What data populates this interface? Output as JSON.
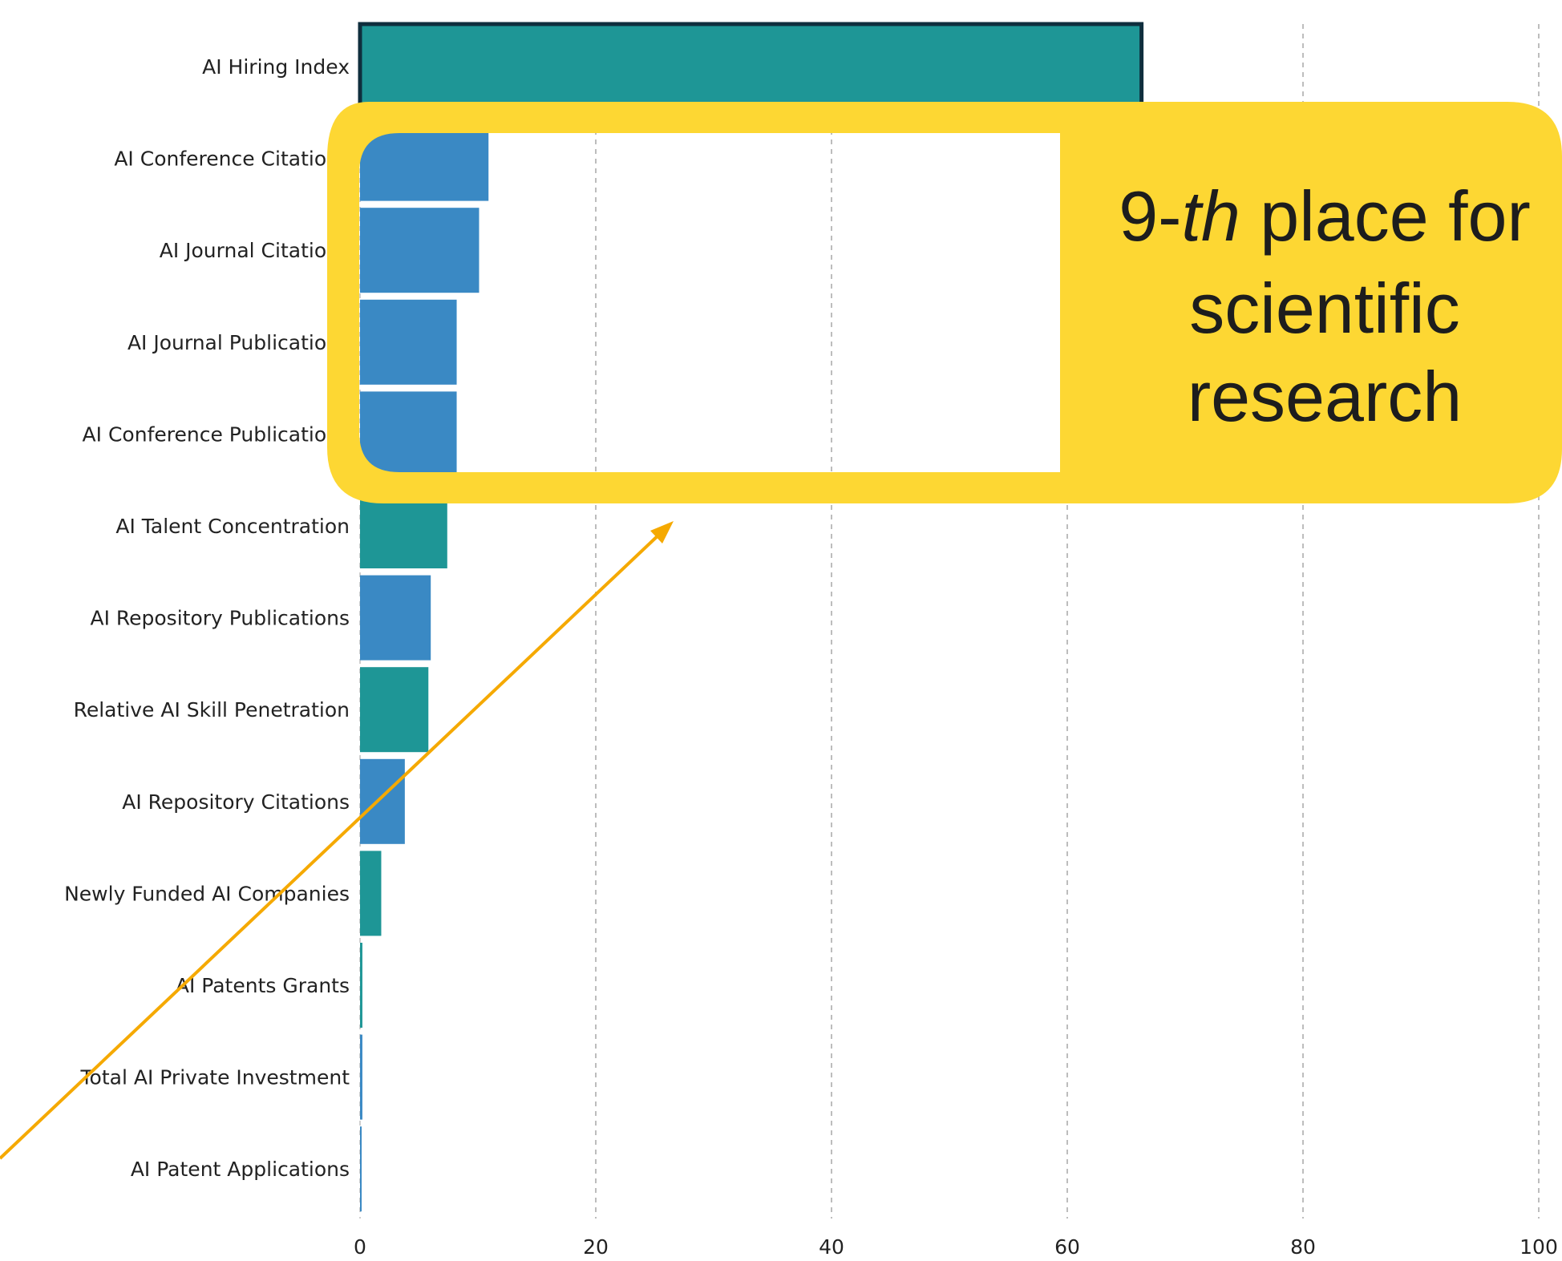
{
  "chart_data": {
    "type": "bar",
    "orientation": "horizontal",
    "categories": [
      "AI Hiring Index",
      "AI Conference Citations",
      "AI Journal Citations",
      "AI Journal Publications",
      "AI Conference Publications",
      "AI Talent Concentration",
      "AI Repository Publications",
      "Relative AI Skill Penetration",
      "AI Repository Citations",
      "Newly Funded AI Companies",
      "AI Patents Grants",
      "Total AI Private Investment",
      "AI Patent Applications"
    ],
    "values": [
      66.3,
      10.9,
      10.1,
      8.2,
      8.2,
      7.4,
      6.0,
      5.8,
      3.8,
      1.8,
      0.2,
      0.2,
      0.1
    ],
    "groups": [
      "teal",
      "blue",
      "blue",
      "blue",
      "blue",
      "teal",
      "blue",
      "teal",
      "blue",
      "teal",
      "teal",
      "blue",
      "blue"
    ],
    "highlighted": "AI Hiring Index",
    "xlim": [
      0,
      100
    ],
    "xticks": [
      "0",
      "20",
      "40",
      "60",
      "80",
      "100"
    ],
    "grid": true,
    "title": "",
    "xlabel": "",
    "ylabel": ""
  },
  "colors": {
    "teal": "#1e9696",
    "blue": "#3a89c4",
    "highlight_border": "#0f2e3d",
    "callout": "#fdd733",
    "arrow": "#f5a900"
  },
  "callout": {
    "prefix": "9-",
    "ordinal": "th",
    "line1_rest": " place for",
    "line2": "scientific",
    "line3": "research"
  }
}
